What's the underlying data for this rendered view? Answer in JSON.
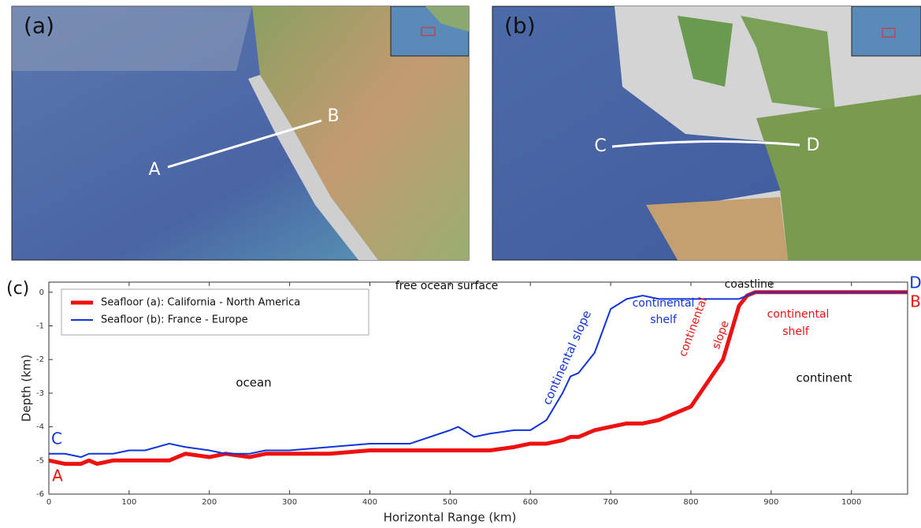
{
  "maps": [
    {
      "label": "(a)",
      "start": "A",
      "end": "B"
    },
    {
      "label": "(b)",
      "start": "C",
      "end": "D"
    }
  ],
  "chart_data": {
    "type": "line",
    "panel_label": "(c)",
    "xlabel": "Horizontal Range (km)",
    "ylabel": "Depth (km)",
    "xlim": [
      0,
      1070
    ],
    "ylim": [
      -6,
      0.3
    ],
    "xticks": [
      0,
      100,
      200,
      300,
      400,
      500,
      600,
      700,
      800,
      900,
      1000
    ],
    "yticks": [
      0,
      -1,
      -2,
      -3,
      -4,
      -5,
      -6
    ],
    "legend": "upper left",
    "x": [
      0,
      20,
      40,
      50,
      60,
      80,
      100,
      120,
      150,
      170,
      200,
      220,
      250,
      270,
      300,
      350,
      400,
      450,
      500,
      510,
      530,
      550,
      580,
      600,
      620,
      640,
      650,
      660,
      680,
      700,
      720,
      740,
      760,
      800,
      840,
      860,
      870,
      880,
      900,
      1000,
      1070
    ],
    "series": [
      {
        "name": "Seafloor (a): California - North America",
        "color": "#ee1111",
        "width": 5,
        "start_label": "A",
        "end_label": "B",
        "values": [
          -5,
          -5.1,
          -5.1,
          -5,
          -5.1,
          -5,
          -5,
          -5,
          -5,
          -4.8,
          -4.9,
          -4.8,
          -4.9,
          -4.8,
          -4.8,
          -4.8,
          -4.7,
          -4.7,
          -4.7,
          -4.7,
          -4.7,
          -4.7,
          -4.6,
          -4.5,
          -4.5,
          -4.4,
          -4.3,
          -4.3,
          -4.1,
          -4,
          -3.9,
          -3.9,
          -3.8,
          -3.4,
          -2,
          -0.4,
          -0.1,
          0,
          0,
          0,
          0
        ]
      },
      {
        "name": "Seafloor (b): France - Europe",
        "color": "#1133dd",
        "width": 2,
        "start_label": "C",
        "end_label": "D",
        "values": [
          -4.8,
          -4.8,
          -4.9,
          -4.8,
          -4.8,
          -4.8,
          -4.7,
          -4.7,
          -4.5,
          -4.6,
          -4.7,
          -4.8,
          -4.8,
          -4.7,
          -4.7,
          -4.6,
          -4.5,
          -4.5,
          -4.1,
          -4,
          -4.3,
          -4.2,
          -4.1,
          -4.1,
          -3.8,
          -3,
          -2.5,
          -2.4,
          -1.8,
          -0.5,
          -0.2,
          -0.1,
          -0.2,
          -0.2,
          -0.2,
          -0.2,
          -0.1,
          0,
          0,
          0,
          0
        ]
      }
    ],
    "annotations": [
      {
        "text": "free ocean surface",
        "color": "#111111"
      },
      {
        "text": "coastline",
        "color": "#111111"
      },
      {
        "text": "ocean",
        "color": "#111111"
      },
      {
        "text": "continent",
        "color": "#111111"
      },
      {
        "text": "continental slope",
        "color": "#1133dd"
      },
      {
        "text": "continental",
        "color": "#1133dd"
      },
      {
        "text": "shelf",
        "color": "#1133dd"
      },
      {
        "text": "continental",
        "color": "#ee1111"
      },
      {
        "text": "slope",
        "color": "#ee1111"
      },
      {
        "text": "continental",
        "color": "#ee1111"
      },
      {
        "text": "shelf",
        "color": "#ee1111"
      }
    ]
  }
}
